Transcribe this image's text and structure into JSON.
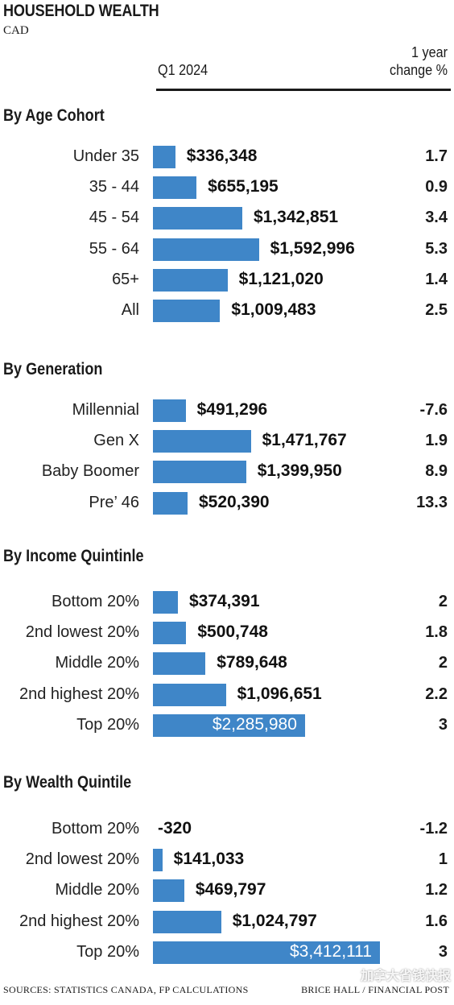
{
  "header": {
    "title": "HOUSEHOLD WEALTH",
    "unit": "CAD",
    "col_value": "Q1 2024",
    "col_change_line1": "1 year",
    "col_change_line2": "change %"
  },
  "footer": {
    "sources": "SOURCES: STATISTICS CANADA, FP CALCULATIONS",
    "credit": "BRICE HALL / FINANCIAL POST",
    "watermark": "加拿大省钱快报"
  },
  "colors": {
    "bar": "#3f86c8",
    "text": "#1a1a1a"
  },
  "chart_data": {
    "type": "bar",
    "orientation": "horizontal",
    "title": "HOUSEHOLD WEALTH",
    "subtitle": "CAD",
    "xlim": [
      0,
      3412111
    ],
    "sections": [
      {
        "title": "By Age Cohort",
        "rows": [
          {
            "label": "Under 35",
            "value": 336348,
            "display": "$336,348",
            "change": "1.7"
          },
          {
            "label": "35 - 44",
            "value": 655195,
            "display": "$655,195",
            "change": "0.9"
          },
          {
            "label": "45 - 54",
            "value": 1342851,
            "display": "$1,342,851",
            "change": "3.4"
          },
          {
            "label": "55 - 64",
            "value": 1592996,
            "display": "$1,592,996",
            "change": "5.3"
          },
          {
            "label": "65+",
            "value": 1121020,
            "display": "$1,121,020",
            "change": "1.4"
          },
          {
            "label": "All",
            "value": 1009483,
            "display": "$1,009,483",
            "change": "2.5"
          }
        ]
      },
      {
        "title": "By Generation",
        "rows": [
          {
            "label": "Millennial",
            "value": 491296,
            "display": "$491,296",
            "change": "-7.6"
          },
          {
            "label": "Gen X",
            "value": 1471767,
            "display": "$1,471,767",
            "change": "1.9"
          },
          {
            "label": "Baby Boomer",
            "value": 1399950,
            "display": "$1,399,950",
            "change": "8.9"
          },
          {
            "label": "Pre’ 46",
            "value": 520390,
            "display": "$520,390",
            "change": "13.3"
          }
        ]
      },
      {
        "title": "By Income Quintinle",
        "rows": [
          {
            "label": "Bottom 20%",
            "value": 374391,
            "display": "$374,391",
            "change": "2"
          },
          {
            "label": "2nd lowest 20%",
            "value": 500748,
            "display": "$500,748",
            "change": "1.8"
          },
          {
            "label": "Middle 20%",
            "value": 789648,
            "display": "$789,648",
            "change": "2"
          },
          {
            "label": "2nd highest 20%",
            "value": 1096651,
            "display": "$1,096,651",
            "change": "2.2"
          },
          {
            "label": "Top 20%",
            "value": 2285980,
            "display": "$2,285,980",
            "change": "3"
          }
        ]
      },
      {
        "title": "By Wealth Quintile",
        "rows": [
          {
            "label": "Bottom 20%",
            "value": -320,
            "display": "-320",
            "change": "-1.2"
          },
          {
            "label": "2nd lowest 20%",
            "value": 141033,
            "display": "$141,033",
            "change": "1"
          },
          {
            "label": "Middle 20%",
            "value": 469797,
            "display": "$469,797",
            "change": "1.2"
          },
          {
            "label": "2nd highest 20%",
            "value": 1024797,
            "display": "$1,024,797",
            "change": "1.6"
          },
          {
            "label": "Top 20%",
            "value": 3412111,
            "display": "$3,412,111",
            "change": "3"
          }
        ]
      }
    ]
  }
}
